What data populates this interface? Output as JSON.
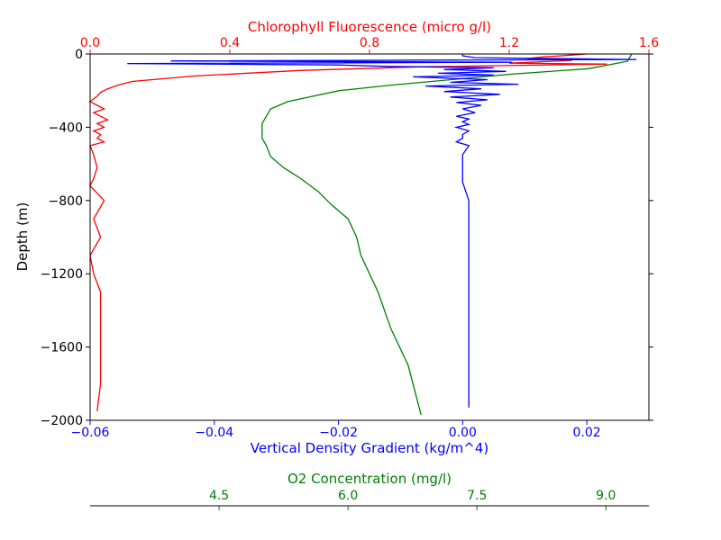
{
  "chart_data": {
    "type": "line",
    "title": "",
    "ylabel": "Depth (m)",
    "ylim": [
      -2000,
      0
    ],
    "yticks": [
      "0",
      "−400",
      "−800",
      "−1200",
      "−1600",
      "−2000"
    ],
    "ytick_values": [
      0,
      -400,
      -800,
      -1200,
      -1600,
      -2000
    ],
    "axes": {
      "chl": {
        "label": "Chlorophyll Fluorescence (micro g/l)",
        "color": "#ff0000",
        "lim": [
          0,
          1.6
        ],
        "ticks": [
          "0.0",
          "0.4",
          "0.8",
          "1.2",
          "1.6"
        ],
        "tick_values": [
          0,
          0.4,
          0.8,
          1.2,
          1.6
        ]
      },
      "density": {
        "label": "Vertical Density Gradient (kg/m^4)",
        "color": "#0000ff",
        "lim": [
          -0.06,
          0.03
        ],
        "ticks": [
          "−0.06",
          "−0.04",
          "−0.02",
          "0.00",
          "0.02"
        ],
        "tick_values": [
          -0.06,
          -0.04,
          -0.02,
          0.0,
          0.02
        ]
      },
      "o2": {
        "label": "O2 Concentration (mg/l)",
        "color": "#008000",
        "lim": [
          3.0,
          9.5
        ],
        "ticks": [
          "4.5",
          "6.0",
          "7.5",
          "9.0"
        ],
        "tick_values": [
          4.5,
          6.0,
          7.5,
          9.0
        ]
      }
    },
    "series": [
      {
        "axis": "chl",
        "color": "#ff0000",
        "x": [
          1.42,
          1.35,
          1.3,
          1.25,
          1.38,
          1.2,
          1.48,
          0.95,
          0.6,
          0.3,
          0.12,
          0.08,
          0.05,
          0.03,
          0.02,
          0.0,
          0.02,
          0.04,
          0.01,
          0.03,
          0.05,
          0.02,
          0.04,
          0.01,
          0.03,
          0.02,
          0.04,
          0.0,
          0.01,
          0.02,
          0.01,
          0.0,
          0.02,
          0.04,
          0.01,
          0.03,
          0.0,
          0.01,
          0.03,
          0.03,
          0.03,
          0.03,
          0.02
        ],
        "y": [
          0,
          -10,
          -15,
          -25,
          -35,
          -50,
          -55,
          -70,
          -90,
          -120,
          -150,
          -170,
          -190,
          -210,
          -230,
          -260,
          -280,
          -300,
          -320,
          -340,
          -360,
          -380,
          -400,
          -420,
          -440,
          -460,
          -480,
          -500,
          -550,
          -620,
          -680,
          -720,
          -760,
          -800,
          -900,
          -1000,
          -1100,
          -1200,
          -1300,
          -1400,
          -1600,
          -1800,
          -1950
        ]
      },
      {
        "axis": "o2",
        "color": "#008000",
        "x": [
          9.3,
          9.25,
          8.8,
          7.9,
          7.2,
          6.5,
          5.9,
          5.6,
          5.3,
          5.1,
          5.05,
          5.0,
          5.0,
          5.0,
          5.05,
          5.1,
          5.25,
          5.45,
          5.65,
          5.8,
          6.0,
          6.1,
          6.15,
          6.25,
          6.35,
          6.5,
          6.7,
          6.85
        ],
        "y": [
          0,
          -40,
          -80,
          -110,
          -140,
          -170,
          -200,
          -230,
          -260,
          -300,
          -340,
          -380,
          -420,
          -460,
          -500,
          -560,
          -620,
          -680,
          -750,
          -820,
          -900,
          -1000,
          -1100,
          -1200,
          -1300,
          -1500,
          -1700,
          -1970
        ]
      },
      {
        "axis": "density",
        "color": "#0000ff",
        "x": [
          0.0,
          0.0,
          0.002,
          0.028,
          -0.047,
          0.008,
          -0.054,
          -0.02,
          -0.012,
          0.005,
          -0.003,
          0.007,
          -0.004,
          0.005,
          -0.008,
          0.004,
          -0.002,
          0.009,
          -0.006,
          0.003,
          -0.003,
          0.006,
          -0.002,
          0.004,
          -0.001,
          0.003,
          0.0,
          0.002,
          -0.001,
          0.001,
          0.0,
          0.001,
          -0.001,
          0.001,
          0.0,
          0.0,
          -0.001,
          0.001,
          0.0,
          0.0,
          0.0,
          0.001,
          0.001,
          0.001,
          0.001,
          0.001,
          0.001,
          0.001
        ],
        "y": [
          0,
          -10,
          -20,
          -30,
          -38,
          -45,
          -52,
          -60,
          -68,
          -75,
          -85,
          -95,
          -105,
          -115,
          -125,
          -140,
          -155,
          -165,
          -175,
          -190,
          -205,
          -220,
          -235,
          -250,
          -265,
          -280,
          -300,
          -320,
          -340,
          -355,
          -370,
          -385,
          -400,
          -420,
          -440,
          -460,
          -480,
          -500,
          -550,
          -600,
          -700,
          -800,
          -1000,
          -1200,
          -1400,
          -1600,
          -1800,
          -1930
        ]
      }
    ]
  }
}
